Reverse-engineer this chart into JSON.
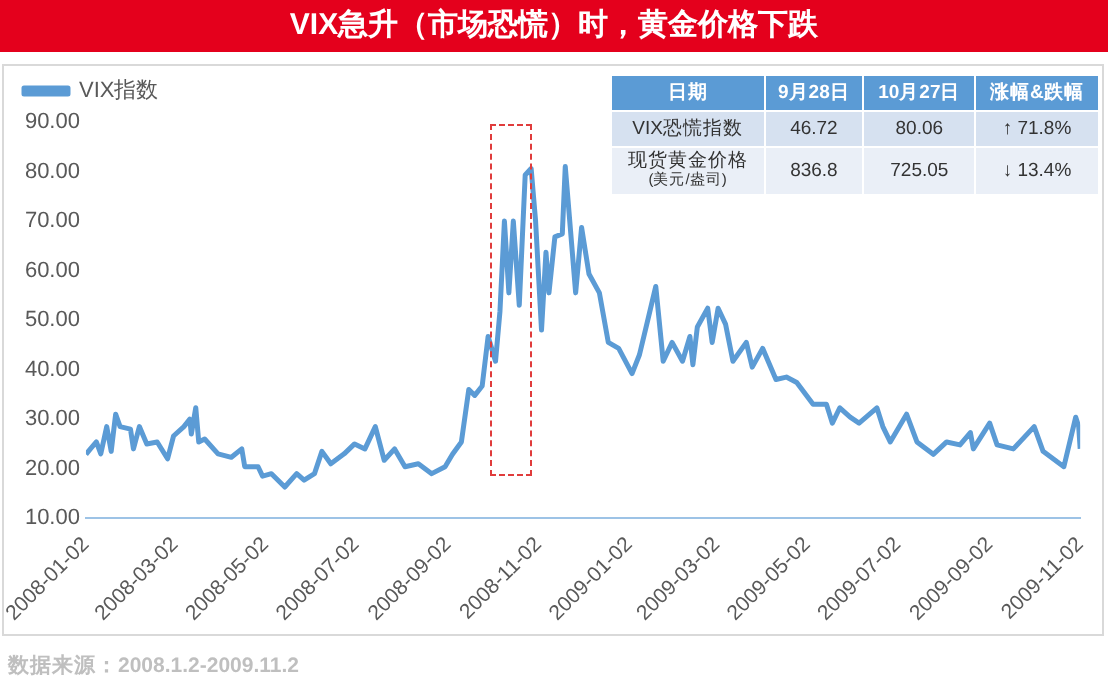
{
  "chart_data": {
    "type": "line",
    "title": "VIX急升（市场恐慌）时，黄金价格下跌",
    "x": [
      "2008-01-02",
      "2008-01-05",
      "2008-01-09",
      "2008-01-12",
      "2008-01-16",
      "2008-01-19",
      "2008-01-22",
      "2008-01-25",
      "2008-02-01",
      "2008-02-03",
      "2008-02-07",
      "2008-02-12",
      "2008-02-19",
      "2008-02-26",
      "2008-03-01",
      "2008-03-08",
      "2008-03-12",
      "2008-03-13",
      "2008-03-16",
      "2008-03-18",
      "2008-03-22",
      "2008-03-31",
      "2008-04-09",
      "2008-04-16",
      "2008-04-18",
      "2008-04-27",
      "2008-04-30",
      "2008-05-06",
      "2008-05-15",
      "2008-05-23",
      "2008-05-28",
      "2008-06-04",
      "2008-06-09",
      "2008-06-15",
      "2008-06-24",
      "2008-07-01",
      "2008-07-08",
      "2008-07-15",
      "2008-07-21",
      "2008-07-28",
      "2008-08-04",
      "2008-08-13",
      "2008-08-22",
      "2008-08-31",
      "2008-09-05",
      "2008-09-11",
      "2008-09-16",
      "2008-09-20",
      "2008-09-25",
      "2008-09-29",
      "2008-10-04",
      "2008-10-07",
      "2008-10-10",
      "2008-10-13",
      "2008-10-16",
      "2008-10-20",
      "2008-10-24",
      "2008-10-28",
      "2008-10-31",
      "2008-11-04",
      "2008-11-07",
      "2008-11-09",
      "2008-11-13",
      "2008-11-18",
      "2008-11-20",
      "2008-11-27",
      "2008-12-01",
      "2008-12-06",
      "2008-12-13",
      "2008-12-19",
      "2008-12-26",
      "2009-01-04",
      "2009-01-09",
      "2009-01-15",
      "2009-01-20",
      "2009-01-25",
      "2009-01-31",
      "2009-02-07",
      "2009-02-12",
      "2009-02-14",
      "2009-02-17",
      "2009-02-24",
      "2009-02-27",
      "2009-03-03",
      "2009-03-08",
      "2009-03-13",
      "2009-03-22",
      "2009-03-26",
      "2009-04-02",
      "2009-04-11",
      "2009-04-18",
      "2009-04-25",
      "2009-05-06",
      "2009-05-15",
      "2009-05-19",
      "2009-05-24",
      "2009-05-31",
      "2009-06-06",
      "2009-06-18",
      "2009-06-22",
      "2009-06-27",
      "2009-07-08",
      "2009-07-15",
      "2009-07-26",
      "2009-08-04",
      "2009-08-13",
      "2009-08-20",
      "2009-08-22",
      "2009-09-02",
      "2009-09-07",
      "2009-09-18",
      "2009-10-02",
      "2009-10-08",
      "2009-10-22",
      "2009-10-30",
      "2009-11-01",
      "2009-11-02"
    ],
    "series": [
      {
        "name": "VIX指数",
        "color": "#5b9bd5",
        "values": [
          22.9,
          24,
          25.4,
          23,
          28.5,
          23.5,
          31,
          28.5,
          28,
          24,
          28.5,
          25,
          25.4,
          22,
          26.6,
          28.5,
          30,
          27,
          32.3,
          25.4,
          26,
          23,
          22.3,
          24,
          20.4,
          20.4,
          18.5,
          19,
          16.3,
          19,
          17.7,
          19,
          23.5,
          21,
          23,
          25,
          24,
          28.5,
          21.7,
          24,
          20.4,
          21,
          19,
          20.4,
          22.9,
          25.4,
          36,
          34.8,
          36.7,
          46.7,
          41.7,
          51.8,
          70,
          55.5,
          70,
          53,
          79.3,
          80.6,
          70,
          48,
          63.7,
          55.5,
          66.8,
          67.4,
          81,
          55.5,
          68.7,
          59.3,
          55.5,
          45.5,
          44.3,
          39.2,
          43,
          50.5,
          56.8,
          41.7,
          45.5,
          41.7,
          46.7,
          41,
          48.6,
          52.4,
          45.5,
          52.4,
          49.2,
          41.7,
          45.5,
          40.5,
          44.3,
          38,
          38.5,
          37.4,
          33,
          33,
          29.2,
          32.3,
          30.4,
          29.2,
          32.3,
          28.5,
          25.4,
          31,
          25.4,
          22.9,
          25.4,
          24.8,
          27.3,
          24,
          29.2,
          24.8,
          24,
          28.5,
          23.5,
          20.4,
          30.4,
          28.5,
          24
        ]
      }
    ],
    "xlim": [
      "2008-01-02",
      "2009-11-02"
    ],
    "xticks": [
      "2008-01-02",
      "2008-03-02",
      "2008-05-02",
      "2008-07-02",
      "2008-09-02",
      "2008-11-02",
      "2009-01-02",
      "2009-03-02",
      "2009-05-02",
      "2009-07-02",
      "2009-09-02",
      "2009-11-02"
    ],
    "ylim": [
      10,
      90
    ],
    "yticks": [
      {
        "value": 10,
        "label": "10.00"
      },
      {
        "value": 20,
        "label": "20.00"
      },
      {
        "value": 30,
        "label": "30.00"
      },
      {
        "value": 40,
        "label": "40.00"
      },
      {
        "value": 50,
        "label": "50.00"
      },
      {
        "value": 60,
        "label": "60.00"
      },
      {
        "value": 70,
        "label": "70.00"
      },
      {
        "value": 80,
        "label": "80.00"
      },
      {
        "value": 90,
        "label": "90.00"
      }
    ],
    "grid": false,
    "legend": "top left",
    "marker": "none",
    "line_style": "solid",
    "annotations": [
      "日期",
      "9月28日",
      "10月27日",
      "涨幅&跌幅",
      "VIX恐慌指数",
      "46.72",
      "80.06",
      "↑ 71.8%",
      "现货黄金价格",
      "(美元/盎司)",
      "836.8",
      "725.05",
      "↓ 13.4%",
      "数据来源：2008.1.2-2009.11.2"
    ]
  }
}
